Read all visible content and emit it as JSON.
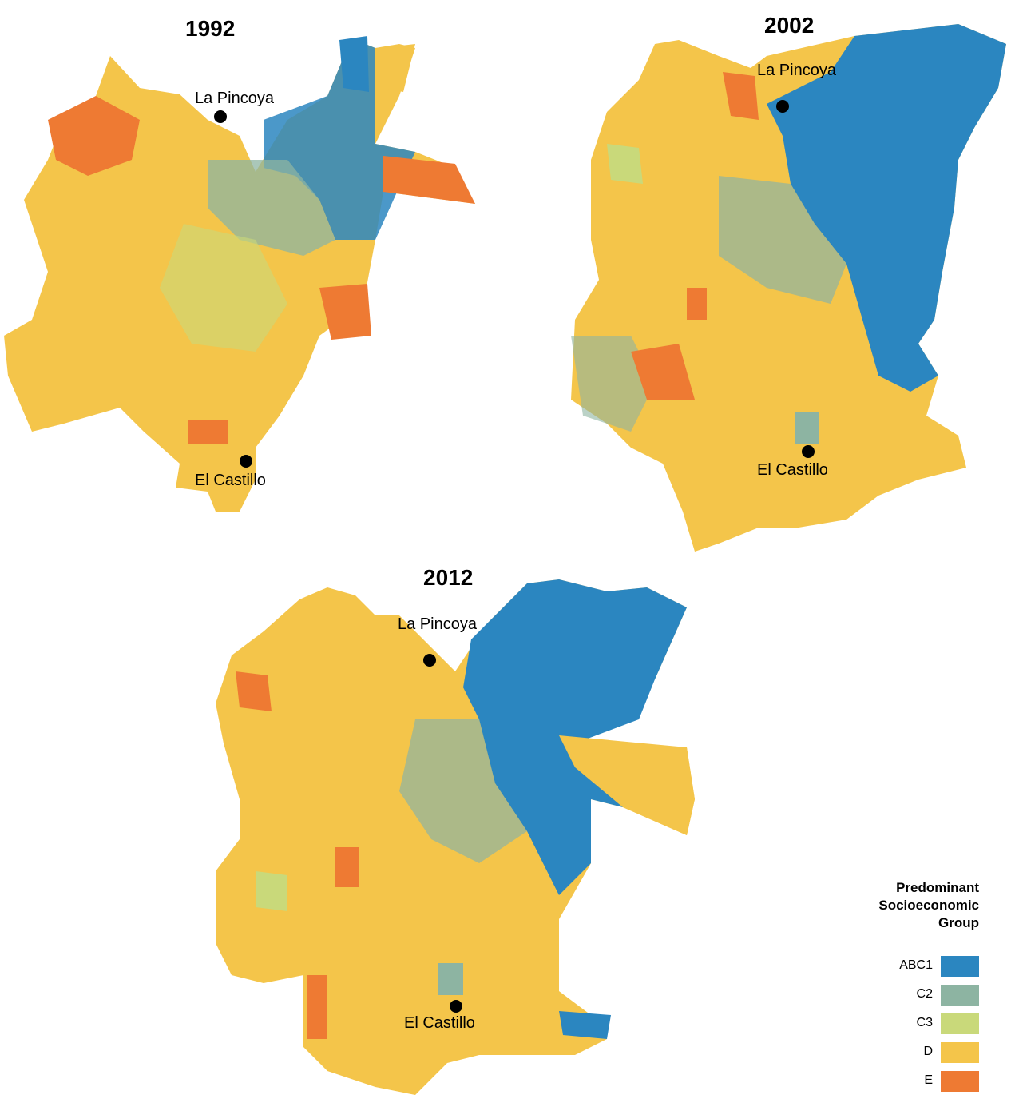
{
  "maps": [
    {
      "id": "1992",
      "title": "1992",
      "label_north": "La Pincoya",
      "label_south": "El Castillo"
    },
    {
      "id": "2002",
      "title": "2002",
      "label_north": "La Pincoya",
      "label_south": "El Castillo"
    },
    {
      "id": "2012",
      "title": "2012",
      "label_north": "La Pincoya",
      "label_south": "El Castillo"
    }
  ],
  "legend": {
    "title_line1": "Predominant",
    "title_line2": "Socioeconomic",
    "title_line3": "Group",
    "items": [
      {
        "label": "ABC1",
        "color": "#2b86c0"
      },
      {
        "label": "C2",
        "color": "#8db4a2"
      },
      {
        "label": "C3",
        "color": "#c9d97a"
      },
      {
        "label": "D",
        "color": "#f4c54a"
      },
      {
        "label": "E",
        "color": "#ee7a33"
      }
    ]
  }
}
